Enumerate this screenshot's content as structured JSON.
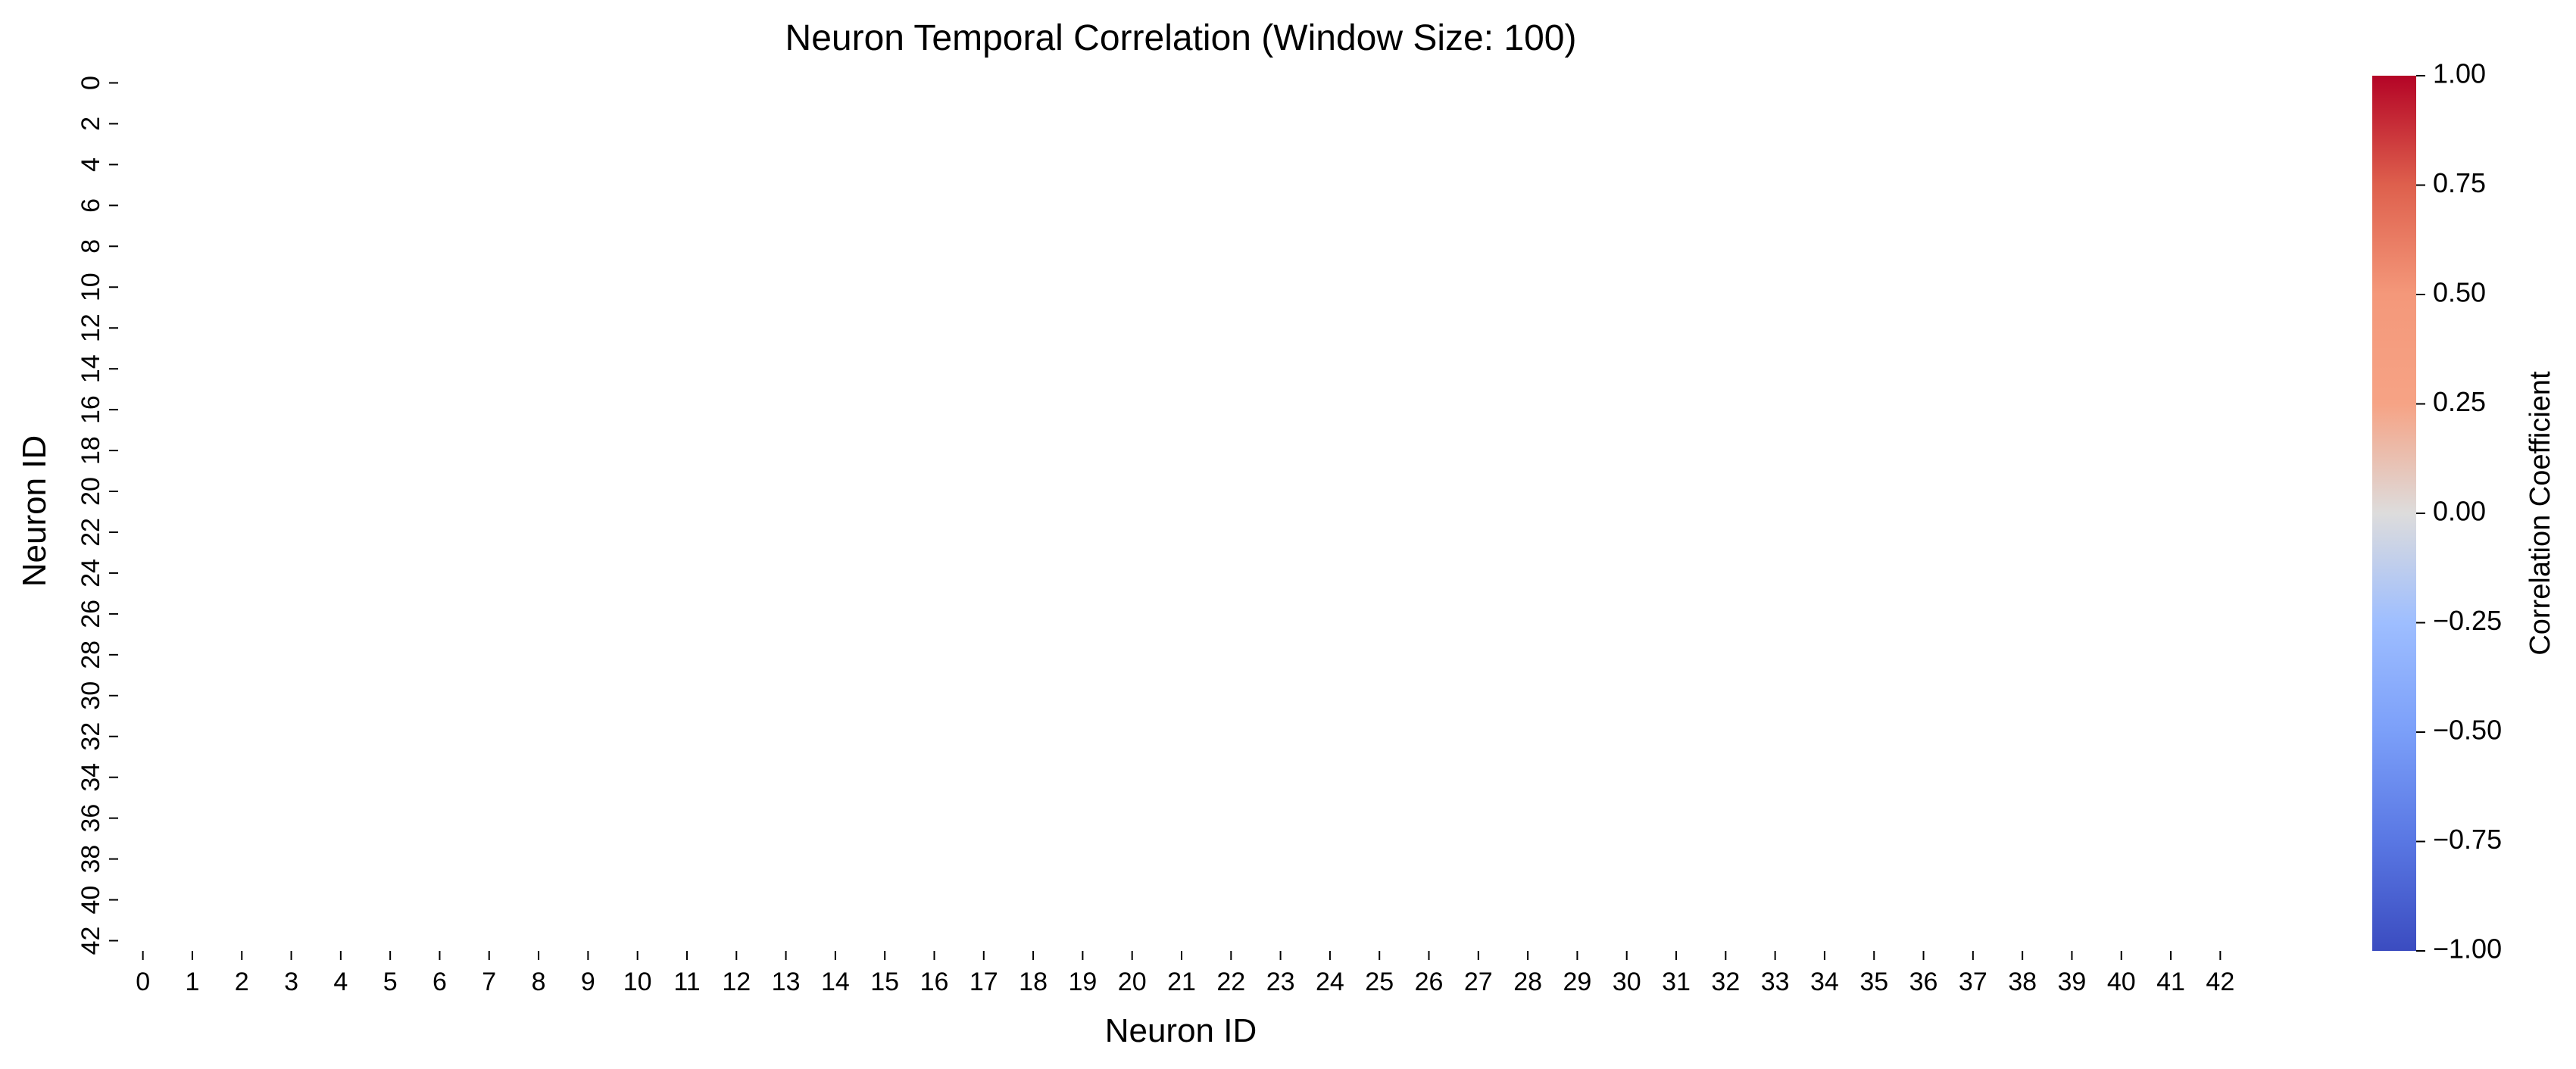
{
  "chart_data": {
    "type": "heatmap",
    "title": "Neuron Temporal Correlation (Window Size: 100)",
    "xlabel": "Neuron ID",
    "ylabel": "Neuron ID",
    "n_neurons": 43,
    "x_tick_labels": [
      "0",
      "1",
      "2",
      "3",
      "4",
      "5",
      "6",
      "7",
      "8",
      "9",
      "10",
      "11",
      "12",
      "13",
      "14",
      "15",
      "16",
      "17",
      "18",
      "19",
      "20",
      "21",
      "22",
      "23",
      "24",
      "25",
      "26",
      "27",
      "28",
      "29",
      "30",
      "31",
      "32",
      "33",
      "34",
      "35",
      "36",
      "37",
      "38",
      "39",
      "40",
      "41",
      "42"
    ],
    "y_tick_labels": [
      "0",
      "2",
      "4",
      "6",
      "8",
      "10",
      "12",
      "14",
      "16",
      "18",
      "20",
      "22",
      "24",
      "26",
      "28",
      "30",
      "32",
      "34",
      "36",
      "38",
      "40",
      "42"
    ],
    "colorbar": {
      "label": "Correlation Coefficient",
      "vmin": -1.0,
      "vmax": 1.0,
      "colormap": "coolwarm",
      "ticks": [
        "1.00",
        "0.75",
        "0.50",
        "0.25",
        "0.00",
        "−0.25",
        "−0.50",
        "−0.75",
        "−1.00"
      ]
    },
    "matrix": []
  }
}
